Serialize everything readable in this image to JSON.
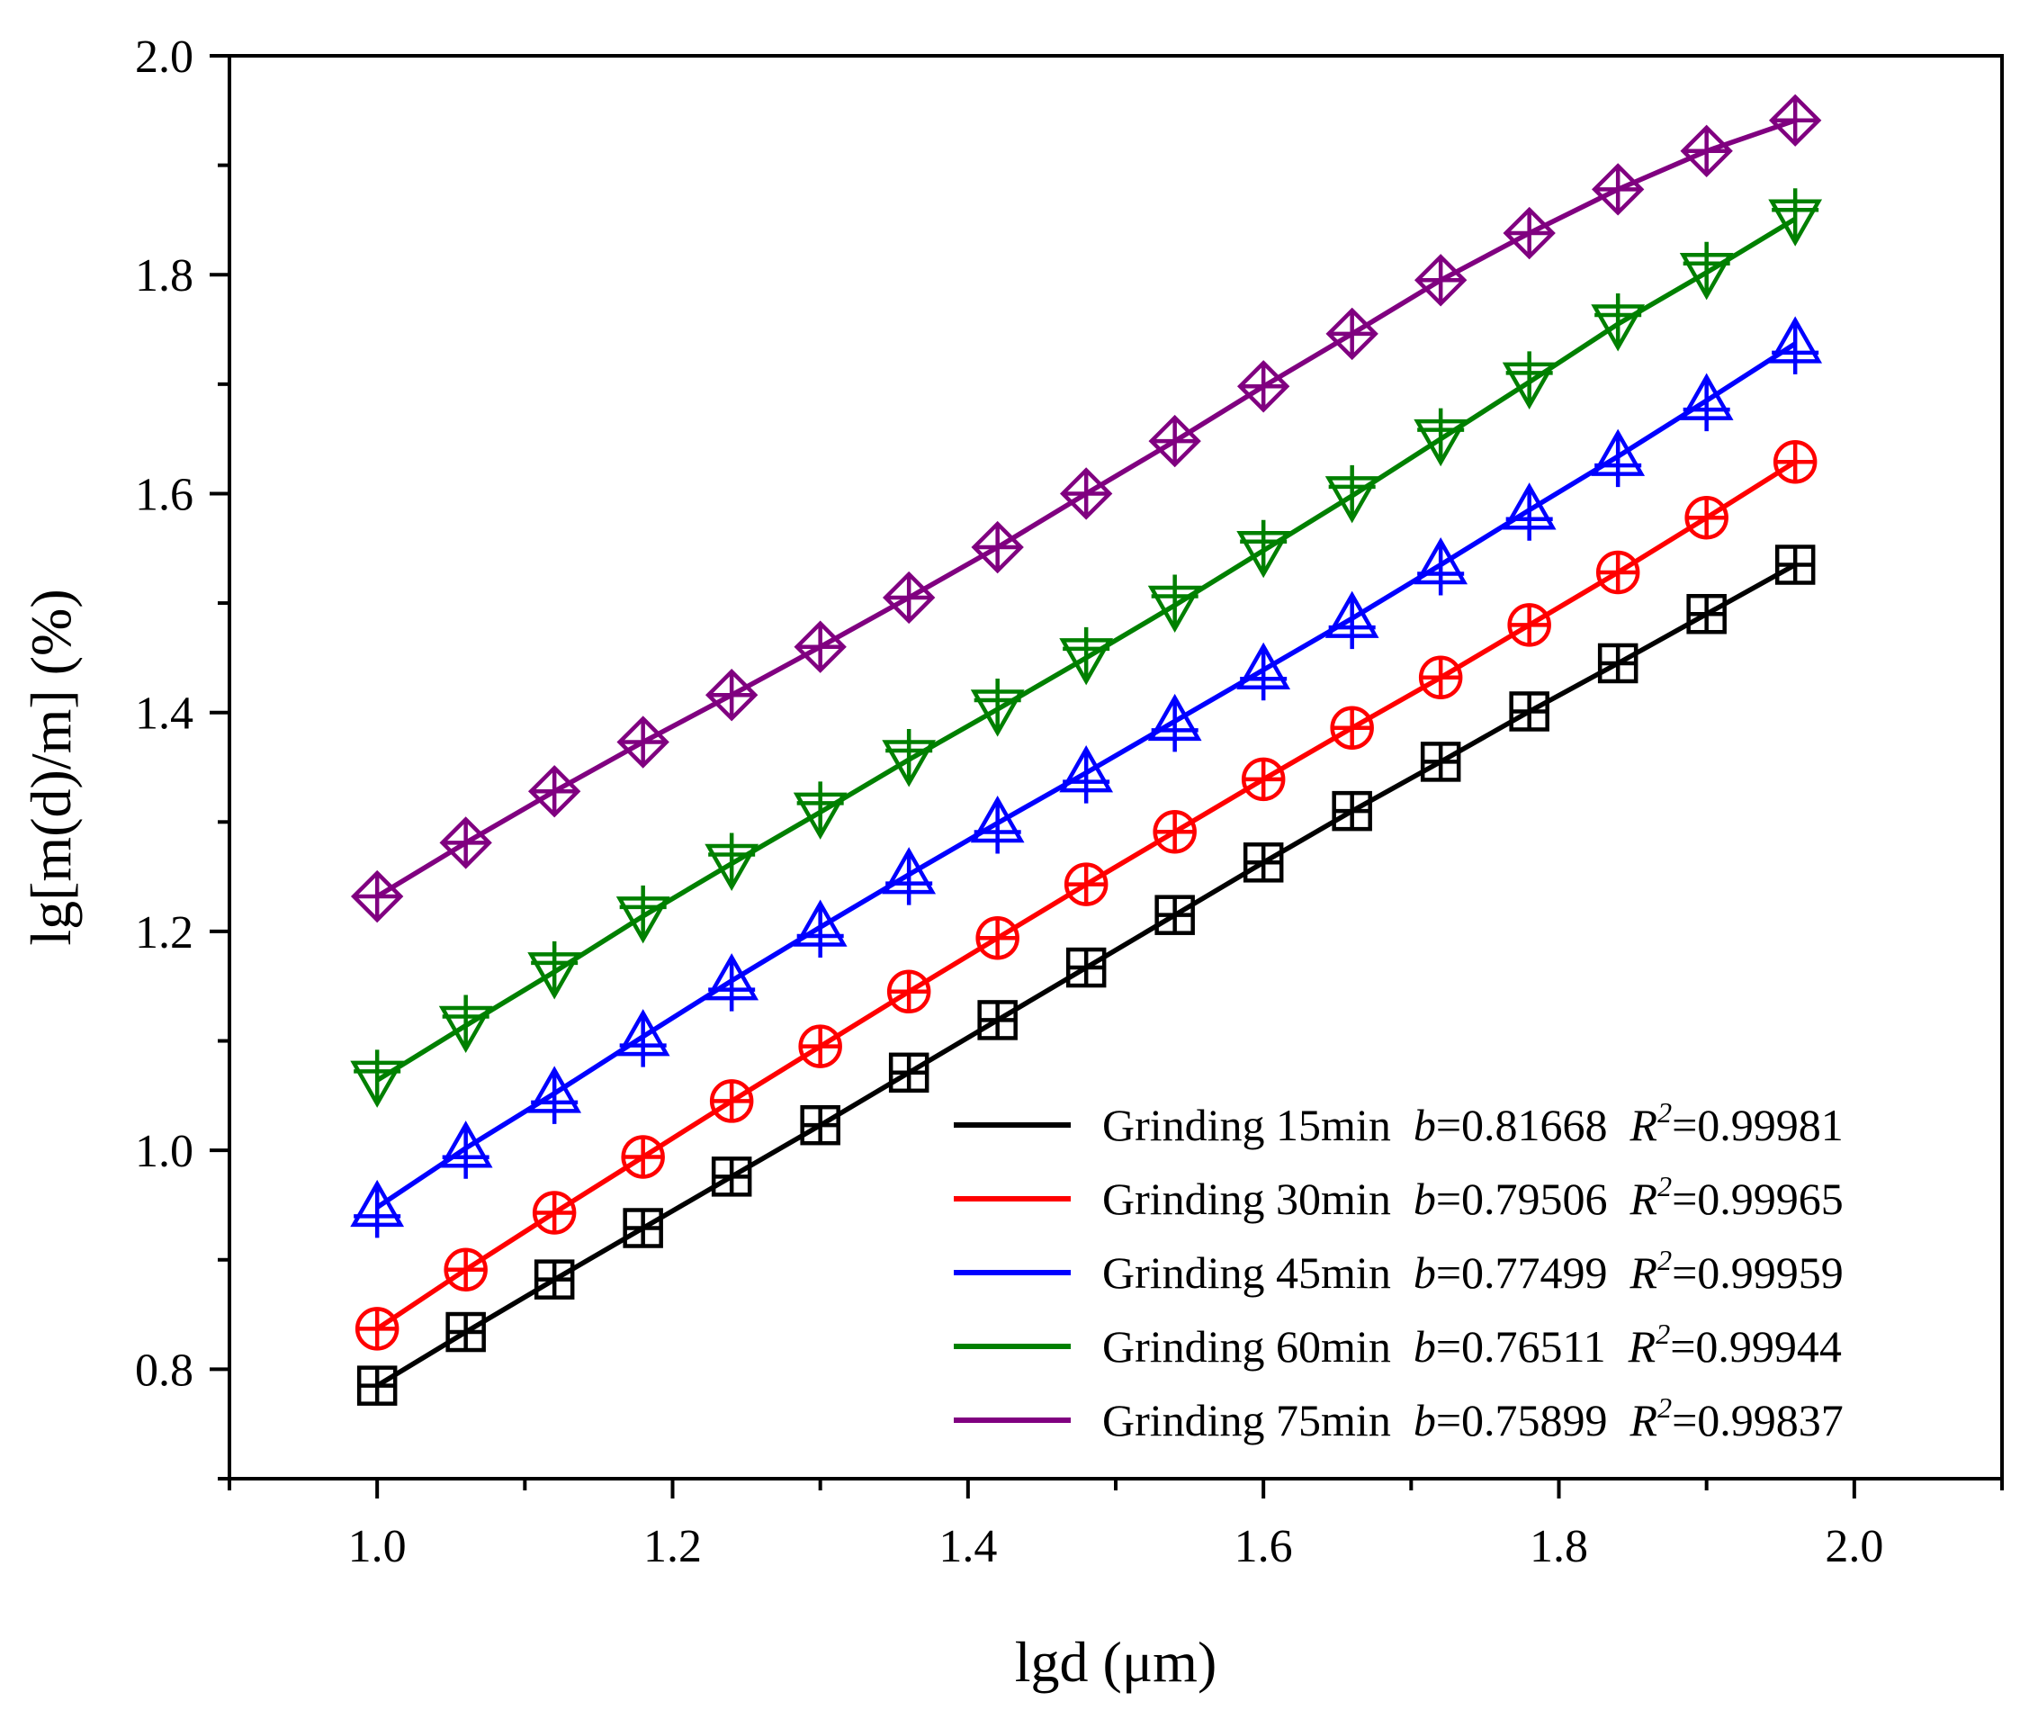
{
  "chart_data": {
    "type": "line",
    "xlabel": "lgd (μm)",
    "ylabel": "lg[m(d)/m] (%)",
    "xlim": [
      0.9,
      2.1
    ],
    "ylim": [
      0.7,
      2.0
    ],
    "x_ticks": [
      1.0,
      1.2,
      1.4,
      1.6,
      1.8,
      2.0
    ],
    "x_tick_labels": [
      "1.0",
      "1.2",
      "1.4",
      "1.6",
      "1.8",
      "2.0"
    ],
    "y_ticks": [
      0.8,
      1.0,
      1.2,
      1.4,
      1.6,
      1.8,
      2.0
    ],
    "y_tick_labels": [
      "0.8",
      "1.0",
      "1.2",
      "1.4",
      "1.6",
      "1.8",
      "2.0"
    ],
    "grid": false,
    "legend_position": "bottom-right",
    "x": [
      1.0,
      1.06,
      1.12,
      1.18,
      1.24,
      1.3,
      1.36,
      1.42,
      1.48,
      1.54,
      1.6,
      1.66,
      1.72,
      1.78,
      1.84,
      1.9,
      1.96
    ],
    "series": [
      {
        "name": "Grinding 15min",
        "name_prefix": "Grinding 15min  ",
        "b_value": "=0.81668",
        "r2_value": "=0.99981",
        "color": "#000000",
        "marker": "square-plus",
        "values": [
          0.785,
          0.834,
          0.882,
          0.929,
          0.976,
          1.023,
          1.071,
          1.119,
          1.167,
          1.215,
          1.263,
          1.31,
          1.355,
          1.401,
          1.445,
          1.49,
          1.535
        ]
      },
      {
        "name": "Grinding 30min",
        "name_prefix": "Grinding 30min  ",
        "b_value": "=0.79506",
        "r2_value": "=0.99965",
        "color": "#ff0000",
        "marker": "circle-plus",
        "values": [
          0.837,
          0.891,
          0.943,
          0.994,
          1.045,
          1.095,
          1.145,
          1.194,
          1.243,
          1.291,
          1.339,
          1.386,
          1.432,
          1.48,
          1.528,
          1.578,
          1.629
        ]
      },
      {
        "name": "Grinding 45min",
        "name_prefix": "Grinding 45min  ",
        "b_value": "=0.77499",
        "r2_value": "=0.99959",
        "color": "#0000ff",
        "marker": "triangle-up-plus",
        "values": [
          0.948,
          1.002,
          1.052,
          1.104,
          1.155,
          1.204,
          1.252,
          1.299,
          1.345,
          1.392,
          1.439,
          1.486,
          1.535,
          1.585,
          1.634,
          1.685,
          1.737
        ]
      },
      {
        "name": "Grinding 60min",
        "name_prefix": "Grinding 60min  ",
        "b_value": "=0.76511",
        "r2_value": "=0.99944",
        "color": "#008000",
        "marker": "triangle-down-plus",
        "values": [
          1.064,
          1.114,
          1.163,
          1.214,
          1.262,
          1.309,
          1.357,
          1.403,
          1.45,
          1.498,
          1.548,
          1.598,
          1.65,
          1.702,
          1.755,
          1.802,
          1.851
        ]
      },
      {
        "name": "Grinding 75min",
        "name_prefix": "Grinding 75min  ",
        "b_value": "=0.75899",
        "r2_value": "=0.99837",
        "color": "#800080",
        "marker": "diamond-plus",
        "values": [
          1.232,
          1.281,
          1.328,
          1.373,
          1.416,
          1.46,
          1.505,
          1.551,
          1.6,
          1.648,
          1.698,
          1.746,
          1.795,
          1.838,
          1.878,
          1.913,
          1.941
        ]
      }
    ],
    "legend_labels": {
      "b": "b",
      "r": "R",
      "r_sup": "2"
    }
  }
}
